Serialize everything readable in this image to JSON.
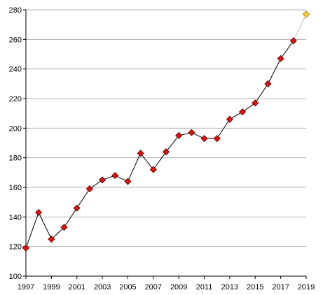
{
  "chart_data": {
    "type": "line",
    "title": "",
    "xlabel": "",
    "ylabel": "",
    "x": [
      1997,
      1998,
      1999,
      2000,
      2001,
      2002,
      2003,
      2004,
      2005,
      2006,
      2007,
      2008,
      2009,
      2010,
      2011,
      2012,
      2013,
      2014,
      2015,
      2016,
      2017,
      2018
    ],
    "series": [
      {
        "values": [
          119,
          143,
          125,
          133,
          146,
          159,
          165,
          168,
          164,
          183,
          172,
          184,
          195,
          197,
          193,
          193,
          206,
          211,
          217,
          230,
          247,
          259
        ],
        "marker": "diamond",
        "color": "#dd1111",
        "line_color": "#000000"
      }
    ],
    "projection": {
      "x": [
        2018,
        2019
      ],
      "values": [
        259,
        277
      ],
      "marker_color": "#ffcc33",
      "line_style": "dotted"
    },
    "xlim": [
      1997,
      2019
    ],
    "ylim": [
      100,
      280
    ],
    "x_ticks": [
      "1997",
      "1999",
      "2001",
      "2003",
      "2005",
      "2007",
      "2009",
      "2011",
      "2013",
      "2015",
      "2017",
      "2019"
    ],
    "y_ticks": [
      "100",
      "120",
      "140",
      "160",
      "180",
      "200",
      "220",
      "240",
      "260",
      "280"
    ],
    "grid": "horizontal",
    "legend": "none"
  }
}
